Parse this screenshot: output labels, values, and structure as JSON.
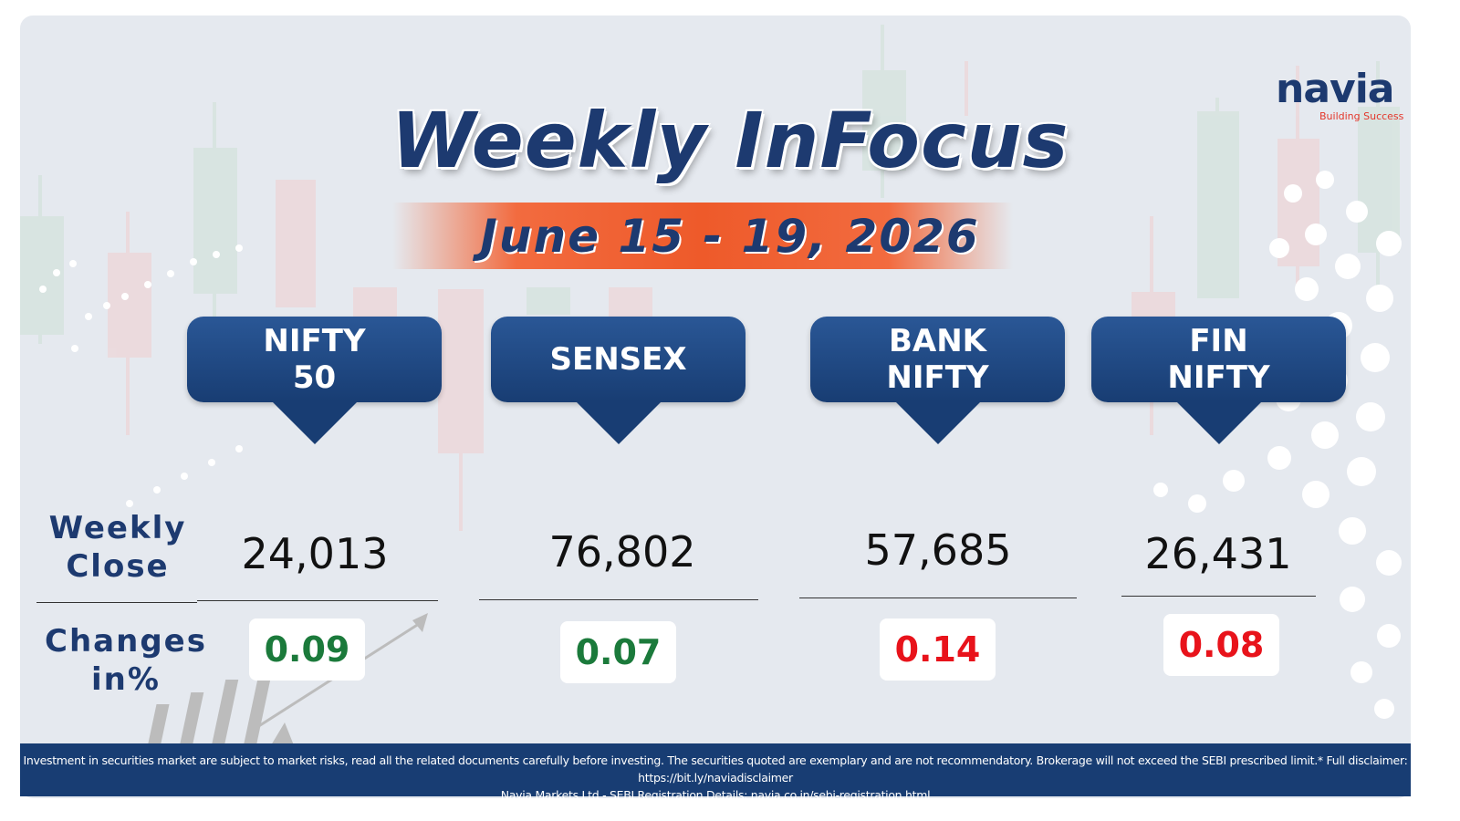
{
  "header": {
    "title": "Weekly InFocus",
    "date": "June 15 - 19, 2026"
  },
  "logo": {
    "name": "navia",
    "tagline": "Building Success"
  },
  "row_labels": {
    "close": "Weekly Close",
    "change": "Changes in%"
  },
  "indices": [
    {
      "name": "NIFTY 50",
      "close": "24,013",
      "change": "0.09",
      "color": "#1b7a3b"
    },
    {
      "name": "SENSEX",
      "close": "76,802",
      "change": "0.07",
      "color": "#1b7a3b"
    },
    {
      "name": "BANK NIFTY",
      "close": "57,685",
      "change": "0.14",
      "color": "#e8131b"
    },
    {
      "name": "FIN NIFTY",
      "close": "26,431",
      "change": "0.08",
      "color": "#e8131b"
    }
  ],
  "footer": {
    "disclaimer": "Investment in securities market are subject to market risks, read all the related documents carefully before investing. The securities quoted are exemplary and are not recommendatory. Brokerage will not exceed the SEBI prescribed limit.* Full disclaimer: https://bit.ly/naviadisclaimer",
    "registration": "Navia Markets Ltd - SEBI Registration Details: navia.co.in/sebi-registration.html"
  }
}
